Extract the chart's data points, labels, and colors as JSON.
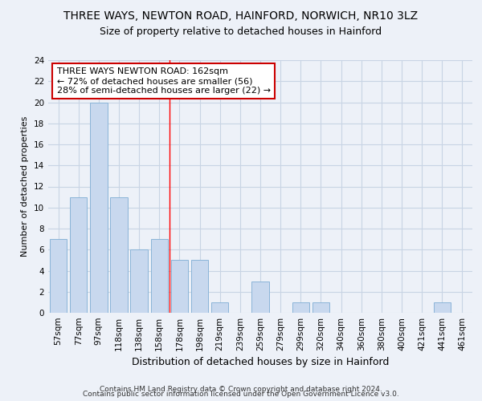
{
  "title1": "THREE WAYS, NEWTON ROAD, HAINFORD, NORWICH, NR10 3LZ",
  "title2": "Size of property relative to detached houses in Hainford",
  "xlabel": "Distribution of detached houses by size in Hainford",
  "ylabel": "Number of detached properties",
  "categories": [
    "57sqm",
    "77sqm",
    "97sqm",
    "118sqm",
    "138sqm",
    "158sqm",
    "178sqm",
    "198sqm",
    "219sqm",
    "239sqm",
    "259sqm",
    "279sqm",
    "299sqm",
    "320sqm",
    "340sqm",
    "360sqm",
    "380sqm",
    "400sqm",
    "421sqm",
    "441sqm",
    "461sqm"
  ],
  "values": [
    7,
    11,
    20,
    11,
    6,
    7,
    5,
    5,
    1,
    0,
    3,
    0,
    1,
    1,
    0,
    0,
    0,
    0,
    0,
    1,
    0
  ],
  "bar_color": "#c8d8ee",
  "bar_edge_color": "#8ab4d8",
  "reference_line_x": 5.5,
  "annotation_text": "THREE WAYS NEWTON ROAD: 162sqm\n← 72% of detached houses are smaller (56)\n28% of semi-detached houses are larger (22) →",
  "annotation_box_color": "white",
  "annotation_box_edge_color": "#cc0000",
  "ylim": [
    0,
    24
  ],
  "yticks": [
    0,
    2,
    4,
    6,
    8,
    10,
    12,
    14,
    16,
    18,
    20,
    22,
    24
  ],
  "footer1": "Contains HM Land Registry data © Crown copyright and database right 2024.",
  "footer2": "Contains public sector information licensed under the Open Government Licence v3.0.",
  "grid_color": "#c8d4e4",
  "bg_color": "#edf1f8",
  "bar_width": 0.85,
  "title1_fontsize": 10,
  "title2_fontsize": 9,
  "ylabel_fontsize": 8,
  "xlabel_fontsize": 9,
  "tick_fontsize": 7.5,
  "annot_fontsize": 8,
  "footer_fontsize": 6.5
}
